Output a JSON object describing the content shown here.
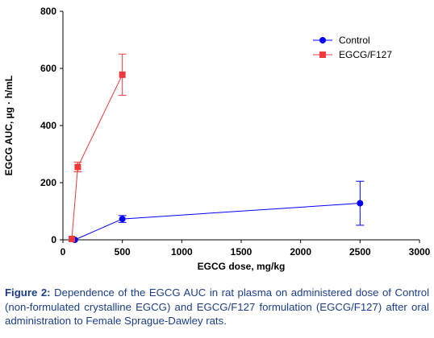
{
  "chart_data": {
    "type": "scatter",
    "xlabel": "EGCG dose, mg/kg",
    "ylabel": "EGCG AUC, µg · h/mL",
    "xlim": [
      0,
      3000
    ],
    "ylim": [
      0,
      800
    ],
    "xticks": [
      0,
      500,
      1000,
      1500,
      2000,
      2500,
      3000
    ],
    "yticks": [
      0,
      200,
      400,
      600,
      800
    ],
    "grid": false,
    "legend_position": "top-right",
    "series": [
      {
        "name": "Control",
        "color": "#0000ff",
        "marker": "circle",
        "x": [
          100,
          500,
          2500
        ],
        "y": [
          0,
          73,
          128
        ],
        "err": [
          0,
          12,
          77
        ]
      },
      {
        "name": "EGCG/F127",
        "color": "#ee3a3a",
        "marker": "square",
        "x": [
          75,
          125,
          500
        ],
        "y": [
          3,
          255,
          578
        ],
        "err": [
          0,
          17,
          72
        ]
      }
    ]
  },
  "caption": {
    "label": "Figure 2:",
    "text": " Dependence of the EGCG AUC in rat plasma on administered dose of Control (non-formulated crystalline EGCG) and EGCG/F127 formulation (EGCG/F127) after oral administration to Female Sprague-Dawley rats."
  }
}
